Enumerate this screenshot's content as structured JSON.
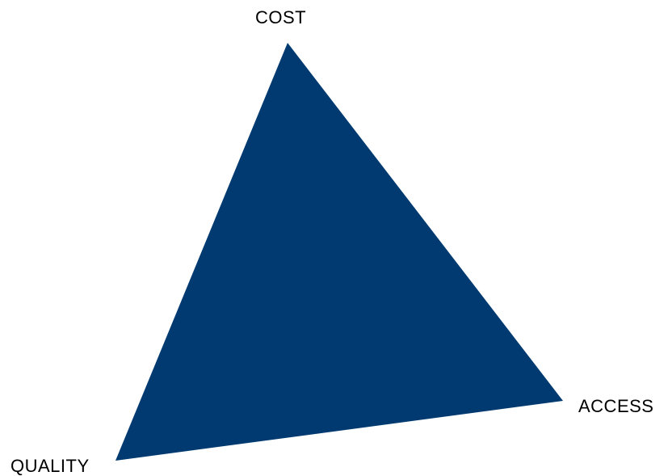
{
  "diagram": {
    "fill_color": "#003A70",
    "labels": {
      "top": "COST",
      "right": "ACCESS",
      "bottom_left": "QUALITY"
    }
  }
}
